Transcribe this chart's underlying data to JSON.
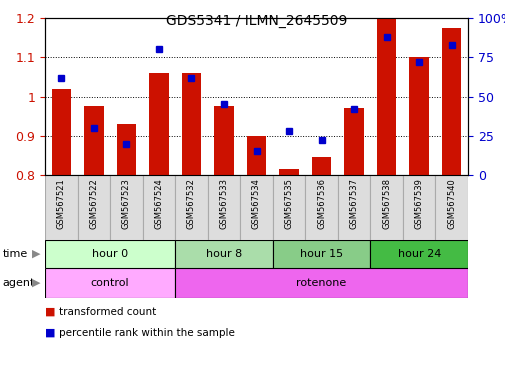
{
  "title": "GDS5341 / ILMN_2645509",
  "samples": [
    "GSM567521",
    "GSM567522",
    "GSM567523",
    "GSM567524",
    "GSM567532",
    "GSM567533",
    "GSM567534",
    "GSM567535",
    "GSM567536",
    "GSM567537",
    "GSM567538",
    "GSM567539",
    "GSM567540"
  ],
  "transformed_count": [
    1.02,
    0.975,
    0.93,
    1.06,
    1.06,
    0.975,
    0.9,
    0.815,
    0.845,
    0.97,
    1.2,
    1.1,
    1.175
  ],
  "percentile_rank": [
    62,
    30,
    20,
    80,
    62,
    45,
    15,
    28,
    22,
    42,
    88,
    72,
    83
  ],
  "time_groups": [
    {
      "label": "hour 0",
      "start": 0,
      "end": 4,
      "color": "#ccffcc"
    },
    {
      "label": "hour 8",
      "start": 4,
      "end": 7,
      "color": "#aaddaa"
    },
    {
      "label": "hour 15",
      "start": 7,
      "end": 10,
      "color": "#88cc88"
    },
    {
      "label": "hour 24",
      "start": 10,
      "end": 13,
      "color": "#44bb44"
    }
  ],
  "agent_groups": [
    {
      "label": "control",
      "start": 0,
      "end": 4,
      "color": "#ffaaff"
    },
    {
      "label": "rotenone",
      "start": 4,
      "end": 13,
      "color": "#ee66ee"
    }
  ],
  "bar_color": "#cc1100",
  "dot_color": "#0000cc",
  "ylim": [
    0.8,
    1.2
  ],
  "y2lim": [
    0,
    100
  ],
  "yticks": [
    0.8,
    0.9,
    1.0,
    1.1,
    1.2
  ],
  "ytick_labels": [
    "0.8",
    "0.9",
    "1",
    "1.1",
    "1.2"
  ],
  "y2ticks": [
    0,
    25,
    50,
    75,
    100
  ],
  "y2ticklabels": [
    "0",
    "25",
    "50",
    "75",
    "100%"
  ],
  "gridlines": [
    0.9,
    1.0,
    1.1
  ],
  "sample_bg_color": "#dddddd",
  "sample_border_color": "#aaaaaa"
}
